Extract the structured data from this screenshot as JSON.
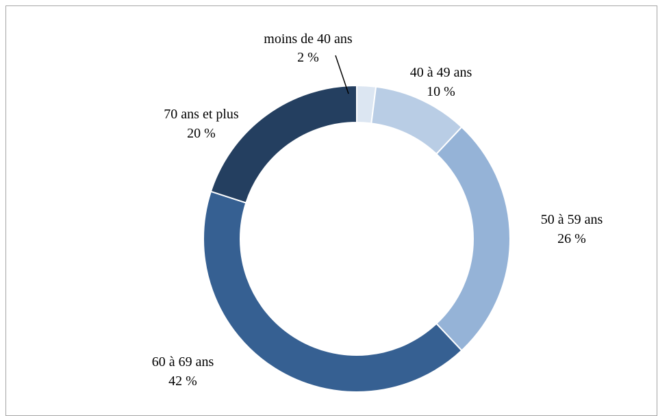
{
  "chart_data": {
    "type": "pie",
    "variant": "donut",
    "title": "",
    "legend": "none",
    "labels_position": "outside",
    "slices": [
      {
        "name": "moins de 40 ans",
        "value": 2,
        "pct_label": "2 %",
        "color": "#dce6f2"
      },
      {
        "name": "40 à 49 ans",
        "value": 10,
        "pct_label": "10 %",
        "color": "#b9cde5"
      },
      {
        "name": "50 à 59 ans",
        "value": 26,
        "pct_label": "26 %",
        "color": "#95b3d7"
      },
      {
        "name": "60 à 69 ans",
        "value": 42,
        "pct_label": "42 %",
        "color": "#366092"
      },
      {
        "name": "70 ans et plus",
        "value": 20,
        "pct_label": "20 %",
        "color": "#243f60"
      }
    ]
  }
}
